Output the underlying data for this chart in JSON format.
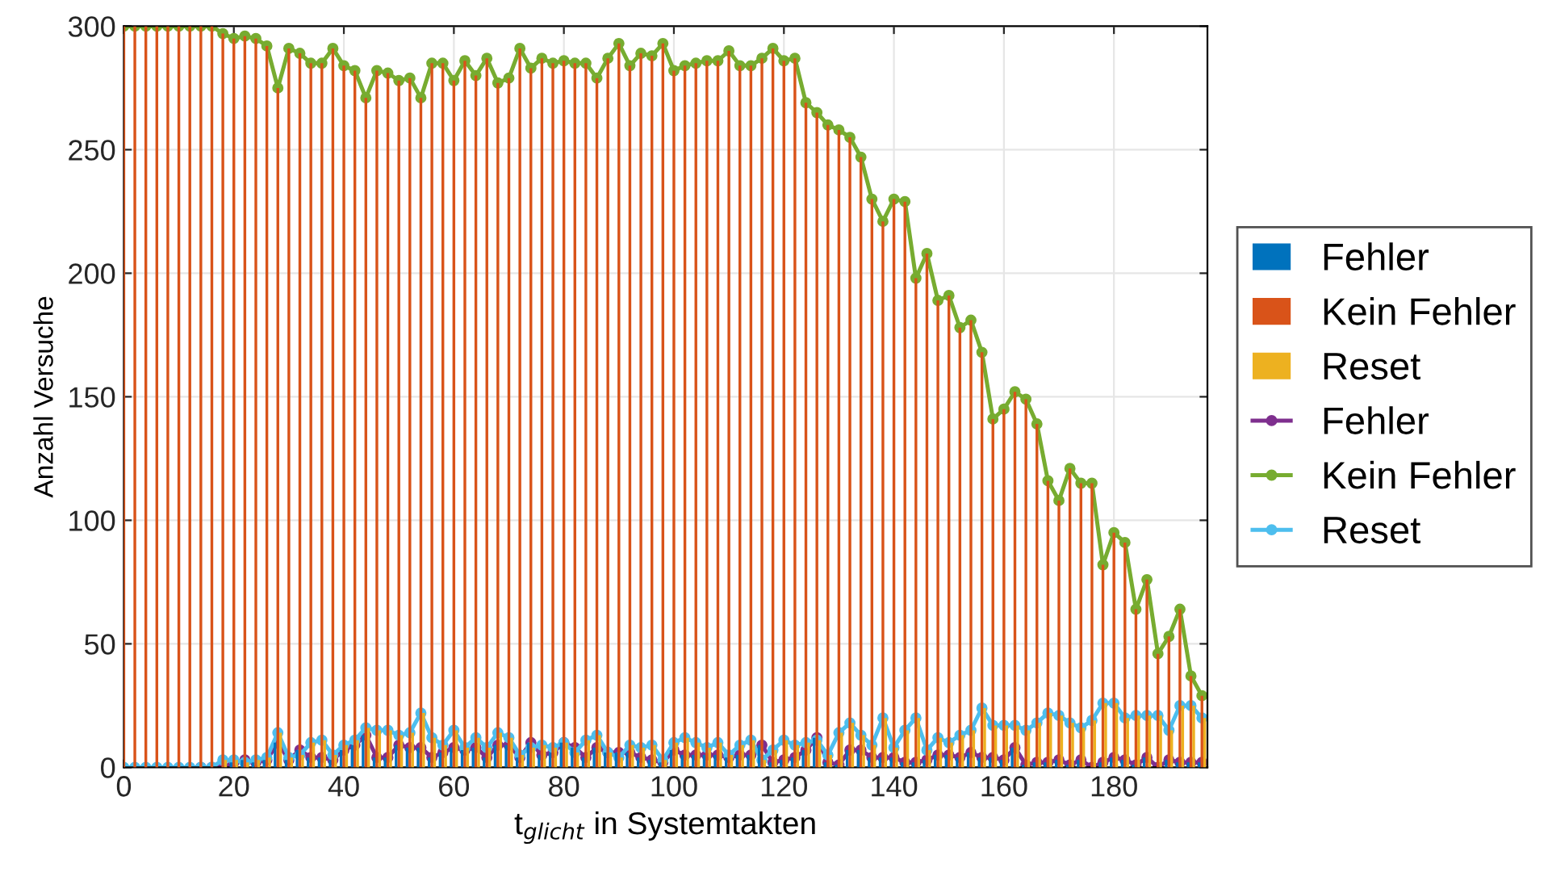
{
  "chart_data": {
    "type": "bar",
    "xlabel": "t$_{glicht}$ in Systemtakten",
    "ylabel": "Anzahl Versuche",
    "x": [
      0,
      2,
      4,
      6,
      8,
      10,
      12,
      14,
      16,
      18,
      20,
      22,
      24,
      26,
      28,
      30,
      32,
      34,
      36,
      38,
      40,
      42,
      44,
      46,
      48,
      50,
      52,
      54,
      56,
      58,
      60,
      62,
      64,
      66,
      68,
      70,
      72,
      74,
      76,
      78,
      80,
      82,
      84,
      86,
      88,
      90,
      92,
      94,
      96,
      98,
      100,
      102,
      104,
      106,
      108,
      110,
      112,
      114,
      116,
      118,
      120,
      122,
      124,
      126,
      128,
      130,
      132,
      134,
      136,
      138,
      140,
      142,
      144,
      146,
      148,
      150,
      152,
      154,
      156,
      158,
      160,
      162,
      164,
      166,
      168,
      170,
      172,
      174,
      176,
      178,
      180,
      182,
      184,
      186,
      188,
      190,
      192,
      194,
      196
    ],
    "xlim": [
      0,
      197
    ],
    "xticks": [
      0,
      20,
      40,
      60,
      80,
      100,
      120,
      140,
      160,
      180
    ],
    "ylim": [
      0,
      300
    ],
    "yticks": [
      0,
      50,
      100,
      150,
      200,
      250,
      300
    ],
    "grid": true,
    "legend": "right",
    "marker": "circle",
    "line_style": "solid",
    "series": [
      {
        "name": "Fehler",
        "color": "#0072bd",
        "values": [
          0,
          0,
          0,
          0,
          0,
          0,
          0,
          0,
          0,
          0,
          2,
          3,
          2,
          3,
          10,
          3,
          7,
          4,
          4,
          3,
          7,
          9,
          13,
          4,
          4,
          9,
          8,
          8,
          4,
          6,
          8,
          7,
          8,
          4,
          9,
          9,
          4,
          10,
          5,
          6,
          10,
          8,
          4,
          8,
          6,
          6,
          6,
          4,
          3,
          2,
          7,
          5,
          5,
          5,
          5,
          4,
          5,
          5,
          9,
          2,
          3,
          4,
          7,
          12,
          2,
          1,
          7,
          7,
          4,
          4,
          4,
          2,
          2,
          3,
          5,
          5,
          4,
          6,
          4,
          4,
          3,
          8,
          1,
          2,
          2,
          3,
          1,
          3,
          0,
          2,
          4,
          3,
          1,
          4,
          0,
          3,
          2,
          2,
          2
        ]
      },
      {
        "name": "Kein Fehler",
        "color": "#d95319",
        "values": [
          300,
          300,
          300,
          300,
          300,
          300,
          300,
          300,
          300,
          297,
          295,
          296,
          295,
          292,
          275,
          291,
          289,
          285,
          285,
          291,
          284,
          282,
          271,
          282,
          281,
          278,
          279,
          271,
          285,
          285,
          278,
          286,
          280,
          287,
          277,
          279,
          291,
          283,
          287,
          285,
          286,
          285,
          285,
          279,
          287,
          293,
          284,
          289,
          288,
          293,
          282,
          284,
          285,
          286,
          286,
          290,
          284,
          284,
          287,
          291,
          286,
          287,
          269,
          265,
          260,
          258,
          255,
          247,
          230,
          221,
          230,
          229,
          198,
          208,
          189,
          191,
          178,
          181,
          168,
          141,
          145,
          152,
          149,
          139,
          116,
          108,
          121,
          115,
          115,
          82,
          95,
          91,
          64,
          76,
          46,
          53,
          64,
          37,
          29
        ]
      },
      {
        "name": "Reset",
        "color": "#edb120",
        "values": [
          0,
          0,
          0,
          0,
          0,
          0,
          0,
          0,
          0,
          3,
          3,
          2,
          3,
          4,
          14,
          4,
          5,
          10,
          11,
          5,
          9,
          11,
          16,
          15,
          15,
          13,
          14,
          22,
          12,
          9,
          15,
          8,
          12,
          8,
          14,
          12,
          5,
          8,
          9,
          8,
          10,
          6,
          11,
          13,
          6,
          4,
          9,
          8,
          9,
          3,
          10,
          12,
          10,
          8,
          10,
          5,
          9,
          11,
          3,
          7,
          11,
          9,
          10,
          11,
          5,
          14,
          18,
          13,
          9,
          20,
          8,
          15,
          20,
          7,
          12,
          10,
          13,
          15,
          24,
          17,
          17,
          17,
          15,
          18,
          22,
          21,
          18,
          16,
          19,
          26,
          26,
          20,
          21,
          21,
          21,
          15,
          25,
          25,
          20
        ]
      },
      {
        "name": "Fehler",
        "type": "line",
        "color": "#7e2f8e",
        "values": [
          null,
          null,
          null,
          null,
          null,
          null,
          null,
          0,
          0,
          0,
          2,
          3,
          2,
          3,
          10,
          3,
          7,
          4,
          4,
          3,
          7,
          9,
          13,
          4,
          4,
          9,
          8,
          8,
          4,
          6,
          8,
          7,
          8,
          4,
          9,
          9,
          4,
          10,
          5,
          6,
          10,
          8,
          4,
          8,
          6,
          6,
          6,
          4,
          3,
          2,
          7,
          5,
          5,
          5,
          5,
          4,
          5,
          5,
          9,
          2,
          3,
          4,
          7,
          12,
          2,
          1,
          7,
          7,
          4,
          4,
          4,
          2,
          2,
          3,
          5,
          5,
          4,
          6,
          4,
          4,
          3,
          8,
          1,
          2,
          2,
          3,
          1,
          3,
          0,
          2,
          4,
          3,
          1,
          4,
          0,
          3,
          2,
          2,
          2
        ]
      },
      {
        "name": "Kein Fehler",
        "type": "line",
        "color": "#77ac30",
        "values": [
          300,
          300,
          300,
          300,
          300,
          300,
          300,
          300,
          300,
          297,
          295,
          296,
          295,
          292,
          275,
          291,
          289,
          285,
          285,
          291,
          284,
          282,
          271,
          282,
          281,
          278,
          279,
          271,
          285,
          285,
          278,
          286,
          280,
          287,
          277,
          279,
          291,
          283,
          287,
          285,
          286,
          285,
          285,
          279,
          287,
          293,
          284,
          289,
          288,
          293,
          282,
          284,
          285,
          286,
          286,
          290,
          284,
          284,
          287,
          291,
          286,
          287,
          269,
          265,
          260,
          258,
          255,
          247,
          230,
          221,
          230,
          229,
          198,
          208,
          189,
          191,
          178,
          181,
          168,
          141,
          145,
          152,
          149,
          139,
          116,
          108,
          121,
          115,
          115,
          82,
          95,
          91,
          64,
          76,
          46,
          53,
          64,
          37,
          29
        ]
      },
      {
        "name": "Reset",
        "type": "line",
        "color": "#4dbeee",
        "values": [
          0,
          0,
          0,
          0,
          0,
          0,
          0,
          0,
          0,
          3,
          3,
          2,
          3,
          4,
          14,
          4,
          5,
          10,
          11,
          5,
          9,
          11,
          16,
          15,
          15,
          13,
          14,
          22,
          12,
          9,
          15,
          8,
          12,
          8,
          14,
          12,
          5,
          8,
          9,
          8,
          10,
          6,
          11,
          13,
          6,
          4,
          9,
          8,
          9,
          3,
          10,
          12,
          10,
          8,
          10,
          5,
          9,
          11,
          3,
          7,
          11,
          9,
          10,
          11,
          5,
          14,
          18,
          13,
          9,
          20,
          8,
          15,
          20,
          7,
          12,
          10,
          13,
          15,
          24,
          17,
          17,
          17,
          15,
          18,
          22,
          21,
          18,
          16,
          19,
          26,
          26,
          20,
          21,
          21,
          21,
          15,
          25,
          25,
          20
        ]
      }
    ]
  }
}
